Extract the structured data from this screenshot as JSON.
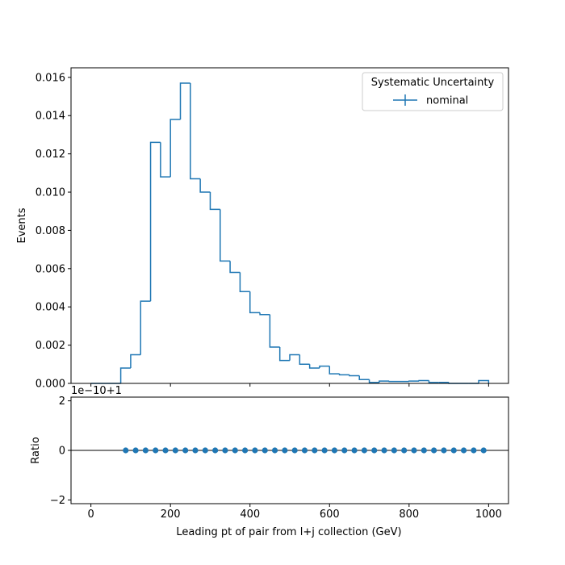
{
  "chart_data": [
    {
      "type": "histogram",
      "panel": "main",
      "xlabel": "",
      "ylabel": "Events",
      "xlim": [
        -50,
        1050
      ],
      "ylim": [
        0,
        0.0165
      ],
      "yticks": [
        0.0,
        0.002,
        0.004,
        0.006,
        0.008,
        0.01,
        0.012,
        0.014,
        0.016
      ],
      "ytick_labels": [
        "0.000",
        "0.002",
        "0.004",
        "0.006",
        "0.008",
        "0.010",
        "0.012",
        "0.014",
        "0.016"
      ],
      "xticks": [
        0,
        200,
        400,
        600,
        800,
        1000
      ],
      "grid": false,
      "legend": {
        "title": "Systematic Uncertainty",
        "placement": "top-right",
        "entries": [
          "nominal"
        ]
      },
      "bin_edges": [
        0,
        25,
        50,
        75,
        100,
        125,
        150,
        175,
        200,
        225,
        250,
        275,
        300,
        325,
        350,
        375,
        400,
        425,
        450,
        475,
        500,
        525,
        550,
        575,
        600,
        625,
        650,
        675,
        700,
        725,
        750,
        775,
        800,
        825,
        850,
        875,
        900,
        925,
        950,
        975,
        1000
      ],
      "series": [
        {
          "name": "nominal",
          "color": "#1f77b4",
          "values": [
            0.0,
            0.0,
            0.0,
            0.0008,
            0.0015,
            0.0043,
            0.0126,
            0.0108,
            0.0138,
            0.0157,
            0.0107,
            0.01,
            0.0091,
            0.0064,
            0.0058,
            0.0048,
            0.0037,
            0.0036,
            0.0019,
            0.0012,
            0.0015,
            0.001,
            0.0008,
            0.0009,
            0.0005,
            0.00045,
            0.0004,
            0.0002,
            5e-05,
            0.00012,
            0.0001,
            0.0001,
            0.00012,
            0.00015,
            5e-05,
            5e-05,
            0.0,
            0.0,
            0.0,
            0.00015
          ]
        }
      ]
    },
    {
      "type": "scatter",
      "panel": "ratio",
      "xlabel": "Leading pt of pair from l+j collection (GeV)",
      "ylabel": "Ratio",
      "offset_text": "1e−10+1",
      "xlim": [
        -50,
        1050
      ],
      "ylim": [
        -2.15,
        2.15
      ],
      "yticks": [
        -2,
        0,
        2
      ],
      "ytick_labels": [
        "−2",
        "0",
        "2"
      ],
      "xticks": [
        0,
        200,
        400,
        600,
        800,
        1000
      ],
      "xtick_labels": [
        "0",
        "200",
        "400",
        "600",
        "800",
        "1000"
      ],
      "reference_line": 0,
      "series": [
        {
          "name": "",
          "color": "#1f77b4",
          "x": [
            87.5,
            112.5,
            137.5,
            162.5,
            187.5,
            212.5,
            237.5,
            262.5,
            287.5,
            312.5,
            337.5,
            362.5,
            387.5,
            412.5,
            437.5,
            462.5,
            487.5,
            512.5,
            537.5,
            562.5,
            587.5,
            612.5,
            637.5,
            662.5,
            687.5,
            712.5,
            737.5,
            762.5,
            787.5,
            812.5,
            837.5,
            862.5,
            887.5,
            912.5,
            937.5,
            962.5,
            987.5
          ],
          "y": [
            0,
            0,
            0,
            0,
            0,
            0,
            0,
            0,
            0,
            0,
            0,
            0,
            0,
            0,
            0,
            0,
            0,
            0,
            0,
            0,
            0,
            0,
            0,
            0,
            0,
            0,
            0,
            0,
            0,
            0,
            0,
            0,
            0,
            0,
            0,
            0,
            0
          ]
        }
      ]
    }
  ]
}
